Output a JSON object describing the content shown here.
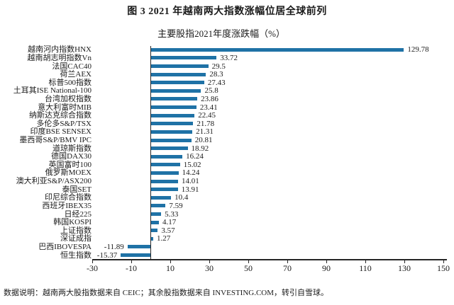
{
  "header": {
    "title": "图 3 2021 年越南两大指数涨幅位居全球前列"
  },
  "chart_data": {
    "type": "bar",
    "orientation": "horizontal",
    "title": "主要股指2021年度涨跌幅（%）",
    "categories": [
      "越南河内指数HNX",
      "越南胡志明指数Vn",
      "法国CAC40",
      "荷兰AEX",
      "标普500指数",
      "土耳其ISE National-100",
      "台湾加权指数",
      "意大利富时MIB",
      "纳斯达克综合指数",
      "多伦多S&P/TSX",
      "印度BSE SENSEX",
      "墨西哥S&P/BMV IPC",
      "道琼斯指数",
      "德国DAX30",
      "英国富时100",
      "俄罗斯MOEX",
      "澳大利亚S&P/ASX200",
      "泰国SET",
      "印尼综合指数",
      "西班牙IBEX35",
      "日经225",
      "韩国KOSPI",
      "上证指数",
      "深证成指",
      "巴西IBOVESPA",
      "恒生指数"
    ],
    "values": [
      129.78,
      33.72,
      29.5,
      28.3,
      27.43,
      25.8,
      23.86,
      23.41,
      22.45,
      21.78,
      21.31,
      20.81,
      18.92,
      16.24,
      15.02,
      14.24,
      14.01,
      13.91,
      10.4,
      7.59,
      5.33,
      4.17,
      3.57,
      1.27,
      -11.89,
      -15.37
    ],
    "value_labels": [
      "129.78",
      "33.72",
      "29.5",
      "28.3",
      "27.43",
      "25.8",
      "23.86",
      "23.41",
      "22.45",
      "21.78",
      "21.31",
      "20.81",
      "18.92",
      "16.24",
      "15.02",
      "14.24",
      "14.01",
      "13.91",
      "10.4",
      "7.59",
      "5.33",
      "4.17",
      "3.57",
      "1.27",
      "-11.89",
      "-15.37"
    ],
    "xlim": [
      -30,
      150
    ],
    "x_ticks": [
      -30,
      -10,
      10,
      30,
      50,
      70,
      90,
      110,
      130,
      150
    ],
    "xlabel": "",
    "ylabel": "",
    "grid": false,
    "legend": "none",
    "bar_color": "#1f72a6",
    "axis_color": "#262626"
  },
  "footer": {
    "note": "数据说明：越南两大股指数据来自 CEIC；其余股指数据来自 INVESTING.COM，转引自雪球。"
  }
}
